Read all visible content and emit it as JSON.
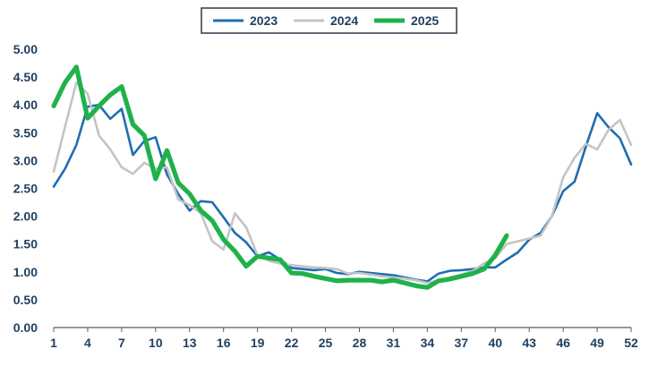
{
  "chart_data": {
    "type": "line",
    "title": "",
    "xlabel": "",
    "ylabel": "",
    "x_ticks": [
      "1",
      "4",
      "7",
      "10",
      "13",
      "16",
      "19",
      "22",
      "25",
      "28",
      "31",
      "34",
      "37",
      "40",
      "43",
      "46",
      "49",
      "52"
    ],
    "y_ticks": [
      "0.00",
      "0.50",
      "1.00",
      "1.50",
      "2.00",
      "2.50",
      "3.00",
      "3.50",
      "4.00",
      "4.50",
      "5.00"
    ],
    "xlim": [
      1,
      52
    ],
    "ylim": [
      0,
      5
    ],
    "grid": "none",
    "legend_position": "top-center",
    "series": [
      {
        "name": "2023",
        "color": "#1f6db3",
        "x": [
          1,
          2,
          3,
          4,
          5,
          6,
          7,
          8,
          9,
          10,
          11,
          12,
          13,
          14,
          15,
          16,
          17,
          18,
          19,
          20,
          21,
          22,
          23,
          24,
          25,
          26,
          27,
          28,
          29,
          30,
          31,
          32,
          33,
          34,
          35,
          36,
          37,
          38,
          39,
          40,
          41,
          42,
          43,
          44,
          45,
          46,
          47,
          48,
          49,
          50,
          51,
          52
        ],
        "y": [
          2.53,
          2.85,
          3.28,
          3.97,
          4.0,
          3.75,
          3.93,
          3.1,
          3.35,
          3.42,
          2.75,
          2.4,
          2.1,
          2.27,
          2.25,
          1.98,
          1.7,
          1.53,
          1.28,
          1.35,
          1.22,
          1.07,
          1.05,
          1.03,
          1.05,
          0.98,
          0.96,
          1.0,
          0.98,
          0.96,
          0.94,
          0.9,
          0.86,
          0.83,
          0.97,
          1.02,
          1.03,
          1.05,
          1.08,
          1.08,
          1.22,
          1.35,
          1.58,
          1.7,
          2.0,
          2.45,
          2.62,
          3.25,
          3.85,
          3.6,
          3.4,
          2.93
        ]
      },
      {
        "name": "2024",
        "color": "#c4c4c4",
        "x": [
          1,
          2,
          3,
          4,
          5,
          6,
          7,
          8,
          9,
          10,
          11,
          12,
          13,
          14,
          15,
          16,
          17,
          18,
          19,
          20,
          21,
          22,
          23,
          24,
          25,
          26,
          27,
          28,
          29,
          30,
          31,
          32,
          33,
          34,
          35,
          36,
          37,
          38,
          39,
          40,
          41,
          42,
          43,
          44,
          45,
          46,
          47,
          48,
          49,
          50,
          51,
          52
        ],
        "y": [
          2.8,
          3.6,
          4.4,
          4.2,
          3.45,
          3.2,
          2.88,
          2.76,
          2.96,
          2.85,
          2.88,
          2.3,
          2.2,
          2.05,
          1.55,
          1.4,
          2.05,
          1.8,
          1.3,
          1.2,
          1.15,
          1.12,
          1.1,
          1.08,
          1.07,
          1.05,
          0.97,
          0.98,
          0.95,
          0.92,
          0.9,
          0.88,
          0.85,
          0.8,
          0.85,
          0.9,
          0.95,
          1.02,
          1.15,
          1.25,
          1.5,
          1.55,
          1.6,
          1.65,
          2.0,
          2.7,
          3.05,
          3.3,
          3.2,
          3.55,
          3.73,
          3.28
        ]
      },
      {
        "name": "2025",
        "color": "#1fb24a",
        "x": [
          1,
          2,
          3,
          4,
          5,
          6,
          7,
          8,
          9,
          10,
          11,
          12,
          13,
          14,
          15,
          16,
          17,
          18,
          19,
          20,
          21,
          22,
          23,
          24,
          25,
          26,
          27,
          28,
          29,
          30,
          31,
          32,
          33,
          34,
          35,
          36,
          37,
          38,
          39,
          40,
          41
        ],
        "y": [
          3.98,
          4.4,
          4.68,
          3.76,
          3.98,
          4.18,
          4.33,
          3.65,
          3.45,
          2.67,
          3.18,
          2.6,
          2.4,
          2.1,
          1.92,
          1.58,
          1.37,
          1.1,
          1.28,
          1.25,
          1.22,
          0.98,
          0.97,
          0.92,
          0.88,
          0.84,
          0.85,
          0.85,
          0.85,
          0.82,
          0.85,
          0.8,
          0.75,
          0.72,
          0.84,
          0.87,
          0.92,
          0.97,
          1.05,
          1.3,
          1.65
        ]
      }
    ]
  }
}
